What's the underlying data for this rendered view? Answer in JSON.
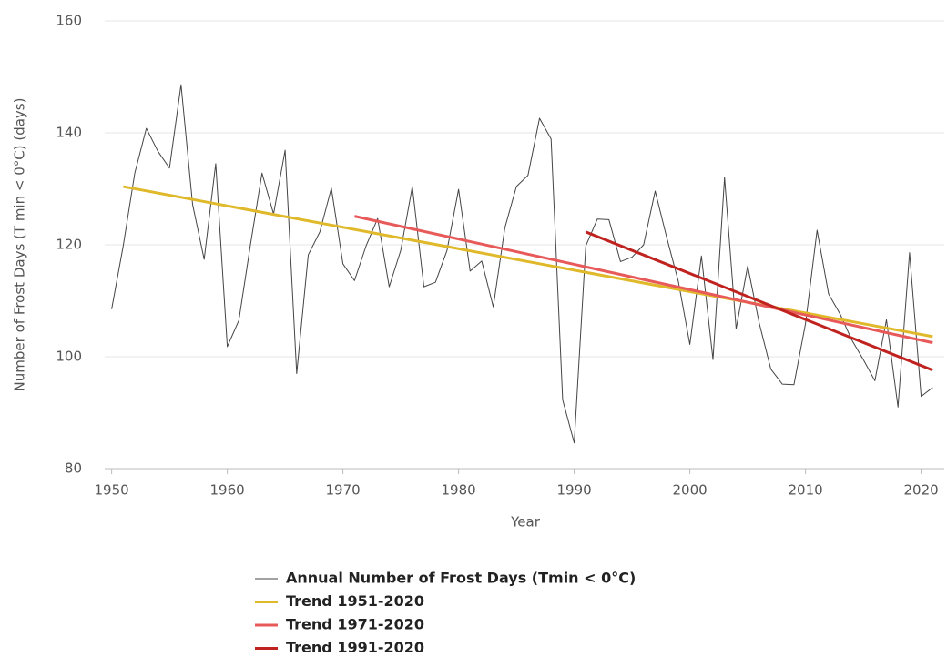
{
  "chart_data": {
    "type": "line",
    "xlabel": "Year",
    "ylabel": "Number of Frost Days (T min < 0°C) (days)",
    "xlim": [
      1949.4,
      2022.0
    ],
    "xticks": [
      1950,
      1960,
      1970,
      1980,
      1990,
      2000,
      2010,
      2020
    ],
    "ylim": [
      80,
      160
    ],
    "yticks": [
      80,
      100,
      120,
      140,
      160
    ],
    "grid": true,
    "legend": "bottom",
    "series": [
      {
        "name": "Annual Number of Frost Days (Tmin < 0°C)",
        "color": "#444444",
        "line_width": 1,
        "x": [
          1950,
          1951,
          1952,
          1953,
          1954,
          1955,
          1956,
          1957,
          1958,
          1959,
          1960,
          1961,
          1962,
          1963,
          1964,
          1965,
          1966,
          1967,
          1968,
          1969,
          1970,
          1971,
          1972,
          1973,
          1974,
          1975,
          1976,
          1977,
          1978,
          1979,
          1980,
          1981,
          1982,
          1983,
          1984,
          1985,
          1986,
          1987,
          1988,
          1989,
          1990,
          1991,
          1992,
          1993,
          1994,
          1995,
          1996,
          1997,
          1998,
          1999,
          2000,
          2001,
          2002,
          2003,
          2004,
          2005,
          2006,
          2007,
          2008,
          2009,
          2010,
          2011,
          2012,
          2013,
          2014,
          2015,
          2016,
          2017,
          2018,
          2019,
          2020,
          2021
        ],
        "values": [
          108.5,
          119.8,
          132.8,
          140.8,
          136.7,
          133.7,
          148.6,
          127.2,
          117.4,
          134.5,
          101.8,
          106.5,
          120,
          132.8,
          125.5,
          136.9,
          97,
          118.2,
          122.3,
          130.1,
          116.6,
          113.6,
          119.8,
          124.7,
          112.5,
          119,
          130.4,
          112.5,
          113.3,
          119,
          129.9,
          115.3,
          117.1,
          108.9,
          123,
          130.4,
          132.4,
          142.6,
          138.9,
          92.3,
          84.6,
          119.8,
          124.6,
          124.5,
          117,
          117.8,
          120,
          129.6,
          121.3,
          113.5,
          102.2,
          118,
          99.5,
          132,
          105,
          116.2,
          106,
          97.8,
          95.1,
          95,
          105.9,
          122.6,
          111.2,
          107.6,
          103,
          99.5,
          95.7,
          106.6,
          91,
          118.6,
          92.9,
          94.5
        ]
      },
      {
        "name": "Trend 1951-2020",
        "color": "#e0b92a",
        "line_width": 3,
        "x": [
          1951,
          2021
        ],
        "values": [
          130.4,
          103.6
        ]
      },
      {
        "name": "Trend 1971-2020",
        "color": "#e85a5a",
        "line_width": 3,
        "x": [
          1971,
          2021
        ],
        "values": [
          125.1,
          102.5
        ]
      },
      {
        "name": "Trend 1991-2020",
        "color": "#c0231f",
        "line_width": 3,
        "x": [
          1991,
          2021
        ],
        "values": [
          122.3,
          97.6
        ]
      }
    ]
  }
}
